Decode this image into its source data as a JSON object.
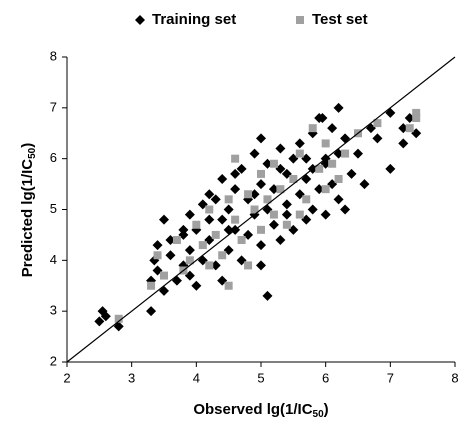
{
  "chart_data": {
    "type": "scatter",
    "x_label": [
      "Observed  lg(1/IC",
      "50",
      ")"
    ],
    "y_label": [
      "Predicted lg(1/IC",
      "50",
      ")"
    ],
    "xlim": [
      2,
      8
    ],
    "ylim": [
      2,
      8
    ],
    "xticks": [
      2,
      3,
      4,
      5,
      6,
      7,
      8
    ],
    "yticks": [
      2,
      3,
      4,
      5,
      6,
      7,
      8
    ],
    "grid": false,
    "legend": "top",
    "identity_line": true,
    "series": [
      {
        "name": "Training set",
        "color": "#000000",
        "marker": "diamond",
        "x": [
          2.5,
          2.55,
          2.6,
          2.8,
          3.3,
          3.3,
          3.35,
          3.4,
          3.4,
          3.5,
          3.5,
          3.6,
          3.7,
          3.8,
          3.8,
          3.9,
          3.9,
          4.0,
          4.0,
          4.1,
          4.1,
          4.2,
          4.2,
          4.3,
          4.3,
          4.4,
          4.4,
          4.5,
          4.5,
          4.6,
          4.6,
          4.7,
          4.7,
          4.8,
          4.8,
          4.9,
          4.9,
          5.0,
          5.0,
          5.0,
          5.1,
          5.1,
          5.1,
          5.2,
          5.2,
          5.3,
          5.3,
          5.4,
          5.4,
          5.5,
          5.5,
          5.6,
          5.6,
          5.7,
          5.7,
          5.8,
          5.8,
          5.9,
          5.9,
          6.0,
          6.0,
          6.1,
          6.1,
          6.2,
          6.2,
          6.3,
          6.4,
          6.5,
          6.6,
          6.7,
          6.8,
          7.0,
          7.0,
          7.2,
          7.2,
          7.3,
          7.4,
          6.2,
          5.95,
          4.4,
          3.8,
          4.6,
          5.3,
          5.7,
          6.0,
          4.9,
          4.5,
          3.9,
          5.4,
          6.3,
          5.8,
          4.2,
          3.6,
          5.0
        ],
        "values": [
          2.8,
          3.0,
          2.9,
          2.7,
          3.0,
          3.6,
          4.0,
          3.8,
          4.3,
          4.8,
          3.4,
          4.1,
          3.6,
          4.5,
          3.9,
          4.9,
          4.2,
          3.5,
          4.6,
          5.1,
          4.0,
          5.3,
          4.4,
          5.2,
          3.9,
          4.8,
          5.6,
          4.2,
          5.0,
          5.4,
          4.6,
          5.8,
          4.0,
          5.2,
          4.5,
          6.1,
          4.9,
          5.5,
          4.3,
          6.4,
          3.3,
          5.0,
          5.9,
          4.7,
          5.4,
          6.2,
          4.4,
          5.1,
          5.7,
          4.6,
          6.0,
          5.3,
          6.3,
          4.8,
          5.6,
          6.5,
          5.0,
          6.8,
          5.4,
          5.9,
          4.9,
          6.6,
          5.5,
          6.1,
          5.2,
          6.4,
          5.7,
          6.1,
          5.5,
          6.6,
          6.4,
          5.8,
          6.9,
          6.6,
          6.3,
          6.8,
          6.5,
          7.0,
          6.8,
          3.6,
          4.6,
          5.7,
          5.8,
          6.0,
          6.0,
          5.3,
          4.6,
          3.7,
          4.9,
          5.0,
          5.8,
          4.8,
          4.4,
          3.9
        ]
      },
      {
        "name": "Test set",
        "color": "#a0a0a0",
        "marker": "square",
        "x": [
          2.8,
          3.3,
          3.4,
          3.5,
          3.7,
          3.9,
          4.0,
          4.1,
          4.2,
          4.3,
          4.4,
          4.5,
          4.5,
          4.6,
          4.7,
          4.8,
          4.8,
          4.9,
          5.0,
          5.0,
          5.1,
          5.2,
          5.2,
          5.3,
          5.4,
          5.5,
          5.6,
          5.7,
          5.8,
          5.9,
          6.0,
          6.0,
          6.1,
          6.2,
          6.3,
          6.5,
          6.8,
          7.3,
          7.4,
          7.4,
          4.6,
          5.6,
          3.8,
          4.2
        ],
        "values": [
          2.85,
          3.5,
          4.1,
          3.7,
          4.4,
          4.0,
          4.7,
          4.3,
          5.0,
          4.5,
          4.1,
          5.2,
          3.5,
          4.8,
          4.4,
          5.3,
          3.9,
          5.0,
          4.6,
          5.7,
          5.2,
          4.9,
          5.9,
          5.4,
          4.7,
          5.6,
          6.1,
          5.2,
          6.6,
          5.8,
          6.3,
          5.4,
          5.9,
          5.6,
          6.1,
          6.5,
          6.7,
          6.6,
          6.8,
          6.9,
          6.0,
          4.9,
          3.8,
          3.9
        ]
      }
    ]
  }
}
